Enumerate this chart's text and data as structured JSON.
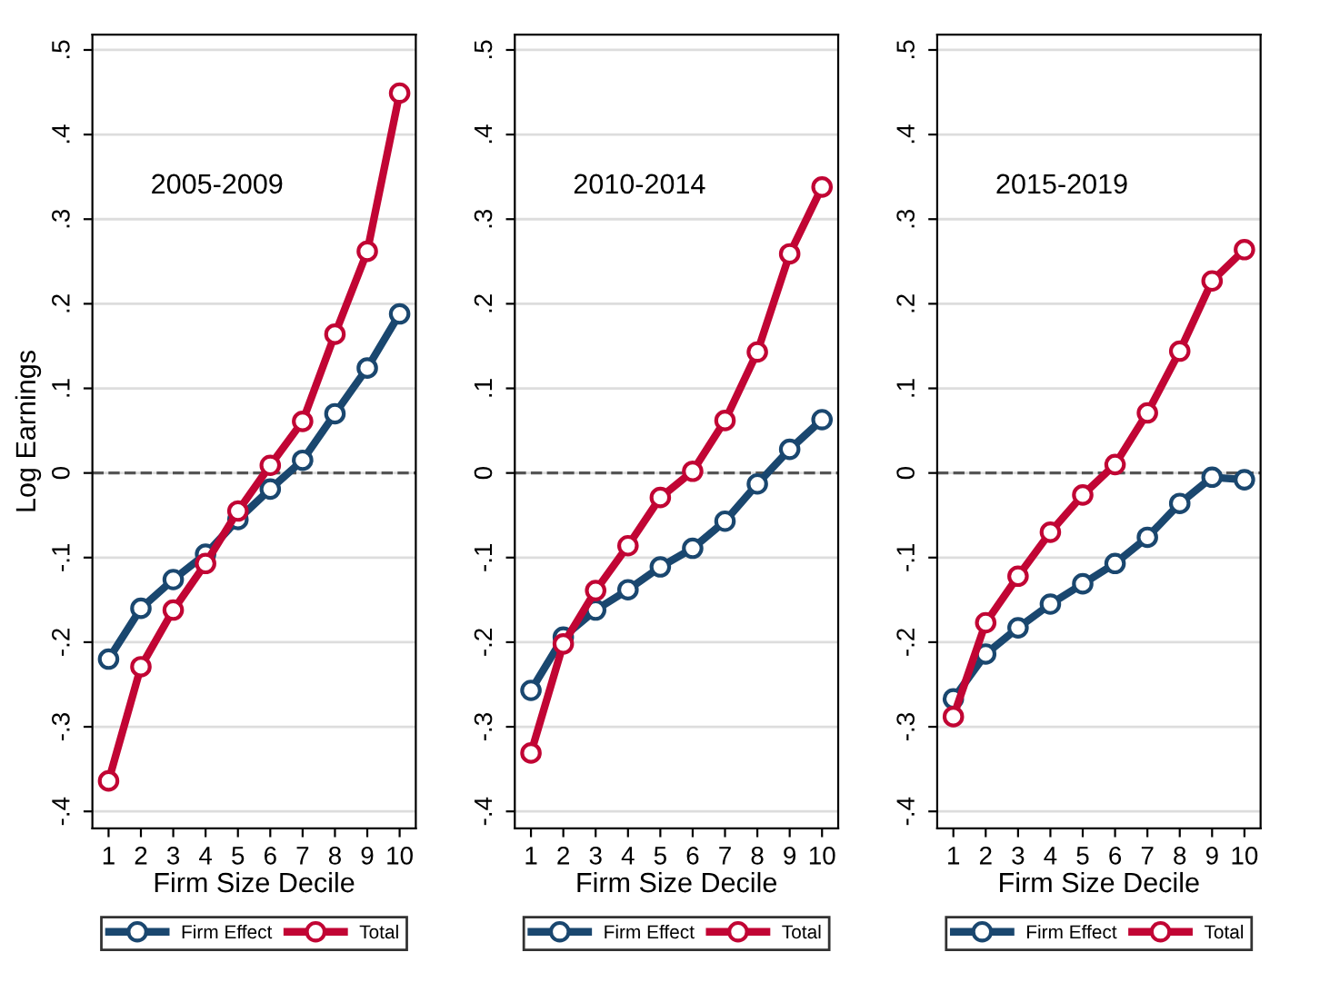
{
  "chart_data": [
    {
      "type": "line",
      "ylabel": "Log Earnings",
      "xlabel": "Firm Size Decile",
      "annotations": [
        "2005-2009"
      ],
      "x": [
        1,
        2,
        3,
        4,
        5,
        6,
        7,
        8,
        9,
        10
      ],
      "xlim": [
        0.5,
        10.5
      ],
      "xticks": [
        1,
        2,
        3,
        4,
        5,
        6,
        7,
        8,
        9,
        10
      ],
      "ylim": [
        -0.42,
        0.518
      ],
      "yticks": [
        {
          "value": -0.4,
          "label": "-.4"
        },
        {
          "value": -0.3,
          "label": "-.3"
        },
        {
          "value": -0.2,
          "label": "-.2"
        },
        {
          "value": -0.1,
          "label": "-.1"
        },
        0,
        {
          "value": 0.1,
          "label": ".1"
        },
        {
          "value": 0.2,
          "label": ".2"
        },
        {
          "value": 0.3,
          "label": ".3"
        },
        {
          "value": 0.4,
          "label": ".4"
        },
        {
          "value": 0.5,
          "label": ".5"
        }
      ],
      "grid": "y",
      "legend": "bottom",
      "marker": "circle",
      "line_style": "solid",
      "ref_lines": [
        {
          "axis": "y",
          "value": 0,
          "color": "#555555",
          "line_style": "dashed"
        }
      ],
      "series": [
        {
          "name": "Firm Effect",
          "color": "#1a476f",
          "values": [
            -0.22,
            -0.16,
            -0.126,
            -0.096,
            -0.055,
            -0.019,
            0.015,
            0.07,
            0.124,
            0.188
          ]
        },
        {
          "name": "Total",
          "color": "#c10534",
          "values": [
            -0.364,
            -0.229,
            -0.162,
            -0.107,
            -0.045,
            0.009,
            0.061,
            0.164,
            0.262,
            0.449
          ]
        }
      ]
    },
    {
      "type": "line",
      "xlabel": "Firm Size Decile",
      "annotations": [
        "2010-2014"
      ],
      "x": [
        1,
        2,
        3,
        4,
        5,
        6,
        7,
        8,
        9,
        10
      ],
      "xlim": [
        0.5,
        10.5
      ],
      "xticks": [
        1,
        2,
        3,
        4,
        5,
        6,
        7,
        8,
        9,
        10
      ],
      "ylim": [
        -0.42,
        0.518
      ],
      "yticks": [
        {
          "value": -0.4,
          "label": "-.4"
        },
        {
          "value": -0.3,
          "label": "-.3"
        },
        {
          "value": -0.2,
          "label": "-.2"
        },
        {
          "value": -0.1,
          "label": "-.1"
        },
        0,
        {
          "value": 0.1,
          "label": ".1"
        },
        {
          "value": 0.2,
          "label": ".2"
        },
        {
          "value": 0.3,
          "label": ".3"
        },
        {
          "value": 0.4,
          "label": ".4"
        },
        {
          "value": 0.5,
          "label": ".5"
        }
      ],
      "grid": "y",
      "legend": "bottom",
      "marker": "circle",
      "line_style": "solid",
      "ref_lines": [
        {
          "axis": "y",
          "value": 0,
          "color": "#555555",
          "line_style": "dashed"
        }
      ],
      "series": [
        {
          "name": "Firm Effect",
          "color": "#1a476f",
          "values": [
            -0.257,
            -0.194,
            -0.162,
            -0.138,
            -0.111,
            -0.089,
            -0.057,
            -0.013,
            0.028,
            0.063
          ]
        },
        {
          "name": "Total",
          "color": "#c10534",
          "values": [
            -0.331,
            -0.202,
            -0.139,
            -0.086,
            -0.029,
            0.002,
            0.062,
            0.143,
            0.259,
            0.338
          ]
        }
      ]
    },
    {
      "type": "line",
      "xlabel": "Firm Size Decile",
      "annotations": [
        "2015-2019"
      ],
      "x": [
        1,
        2,
        3,
        4,
        5,
        6,
        7,
        8,
        9,
        10
      ],
      "xlim": [
        0.5,
        10.5
      ],
      "xticks": [
        1,
        2,
        3,
        4,
        5,
        6,
        7,
        8,
        9,
        10
      ],
      "ylim": [
        -0.42,
        0.518
      ],
      "yticks": [
        {
          "value": -0.4,
          "label": "-.4"
        },
        {
          "value": -0.3,
          "label": "-.3"
        },
        {
          "value": -0.2,
          "label": "-.2"
        },
        {
          "value": -0.1,
          "label": "-.1"
        },
        0,
        {
          "value": 0.1,
          "label": ".1"
        },
        {
          "value": 0.2,
          "label": ".2"
        },
        {
          "value": 0.3,
          "label": ".3"
        },
        {
          "value": 0.4,
          "label": ".4"
        },
        {
          "value": 0.5,
          "label": ".5"
        }
      ],
      "grid": "y",
      "legend": "bottom",
      "marker": "circle",
      "line_style": "solid",
      "ref_lines": [
        {
          "axis": "y",
          "value": 0,
          "color": "#555555",
          "line_style": "dashed"
        }
      ],
      "series": [
        {
          "name": "Firm Effect",
          "color": "#1a476f",
          "values": [
            -0.267,
            -0.214,
            -0.183,
            -0.155,
            -0.131,
            -0.107,
            -0.076,
            -0.036,
            -0.005,
            -0.008
          ]
        },
        {
          "name": "Total",
          "color": "#c10534",
          "values": [
            -0.288,
            -0.177,
            -0.122,
            -0.07,
            -0.026,
            0.01,
            0.071,
            0.144,
            0.227,
            0.264
          ]
        }
      ]
    }
  ]
}
